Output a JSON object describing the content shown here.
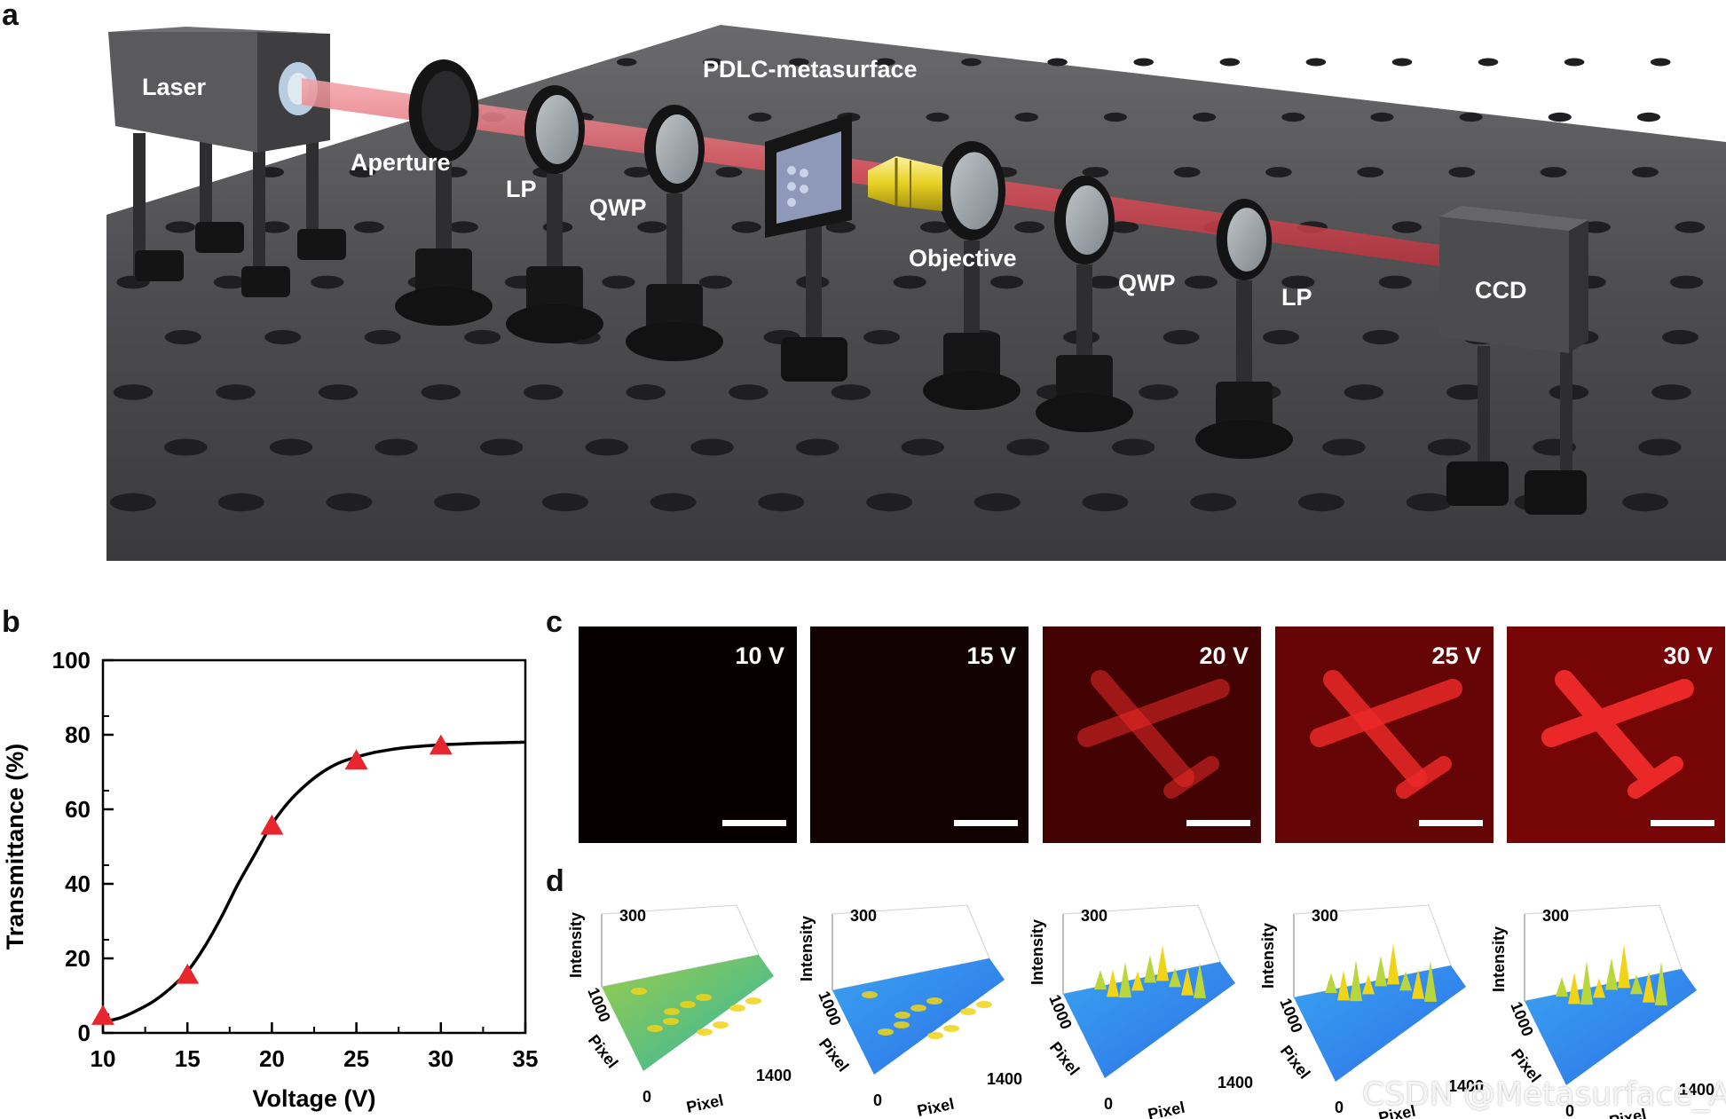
{
  "panel_letters": {
    "a": "a",
    "b": "b",
    "c": "c",
    "d": "d"
  },
  "panel_a": {
    "labels": {
      "laser": "Laser",
      "aperture": "Aperture",
      "lp1": "LP",
      "qwp1": "QWP",
      "pdlc": "PDLC-metasurface",
      "objective": "Objective",
      "qwp2": "QWP",
      "lp2": "LP",
      "ccd": "CCD"
    },
    "colors": {
      "table": "#4a4a4c",
      "beam": "#e0525e",
      "objective_body": "#e6d021",
      "mount": "#151515"
    }
  },
  "chart_data": {
    "type": "line",
    "xlabel": "Voltage (V)",
    "ylabel": "Transmittance (%)",
    "xlim": [
      10,
      35
    ],
    "ylim": [
      0,
      100
    ],
    "xticks": [
      10,
      15,
      20,
      25,
      30,
      35
    ],
    "yticks": [
      0,
      20,
      40,
      60,
      80,
      100
    ],
    "grid": false,
    "series": [
      {
        "mark": "line",
        "color": "#000000",
        "x": [
          10,
          11,
          12,
          13,
          14,
          15,
          16,
          17,
          18,
          19,
          20,
          21,
          22,
          23,
          24,
          25,
          26,
          27,
          28,
          29,
          30,
          31,
          32,
          33,
          34,
          35
        ],
        "y": [
          3,
          4,
          6,
          8.5,
          12,
          16.5,
          23,
          31,
          40,
          48,
          56,
          62,
          66.5,
          70,
          72.5,
          74,
          75.2,
          76,
          76.6,
          77,
          77.3,
          77.5,
          77.7,
          77.8,
          77.9,
          78
        ]
      },
      {
        "mark": "triangle",
        "color": "#e8262d",
        "x": [
          10,
          15,
          20,
          25,
          30
        ],
        "y": [
          4.5,
          15.5,
          55.5,
          73,
          77
        ]
      }
    ]
  },
  "panel_c": {
    "images": [
      {
        "label": "10 V",
        "level": 0.0
      },
      {
        "label": "15 V",
        "level": 0.1
      },
      {
        "label": "20 V",
        "level": 0.55
      },
      {
        "label": "25 V",
        "level": 0.85
      },
      {
        "label": "30 V",
        "level": 1.0
      }
    ]
  },
  "panel_d": {
    "plots": [
      {
        "zlabel": "Intensity",
        "ztick": "300",
        "ytick": "1000",
        "ylabel": "Pixel",
        "xtick0": "0",
        "xtick1": "1400",
        "xlabel": "Pixel",
        "level": 0.1
      },
      {
        "zlabel": "Intensity",
        "ztick": "300",
        "ytick": "1000",
        "ylabel": "Pixel",
        "xtick0": "0",
        "xtick1": "1400",
        "xlabel": "Pixel",
        "level": 0.25
      },
      {
        "zlabel": "Intensity",
        "ztick": "300",
        "ytick": "1000",
        "ylabel": "Pixel",
        "xtick0": "0",
        "xtick1": "1400",
        "xlabel": "Pixel",
        "level": 0.6
      },
      {
        "zlabel": "Intensity",
        "ztick": "300",
        "ytick": "1000",
        "ylabel": "Pixel",
        "xtick0": "0",
        "xtick1": "1400",
        "xlabel": "Pixel",
        "level": 0.8
      },
      {
        "zlabel": "Intensity",
        "ztick": "300",
        "ytick": "1000",
        "ylabel": "Pixel",
        "xtick0": "0",
        "xtick1": "1400",
        "xlabel": "Pixel",
        "level": 0.9
      }
    ]
  },
  "watermark": "CSDN @Metasurface_AI_"
}
